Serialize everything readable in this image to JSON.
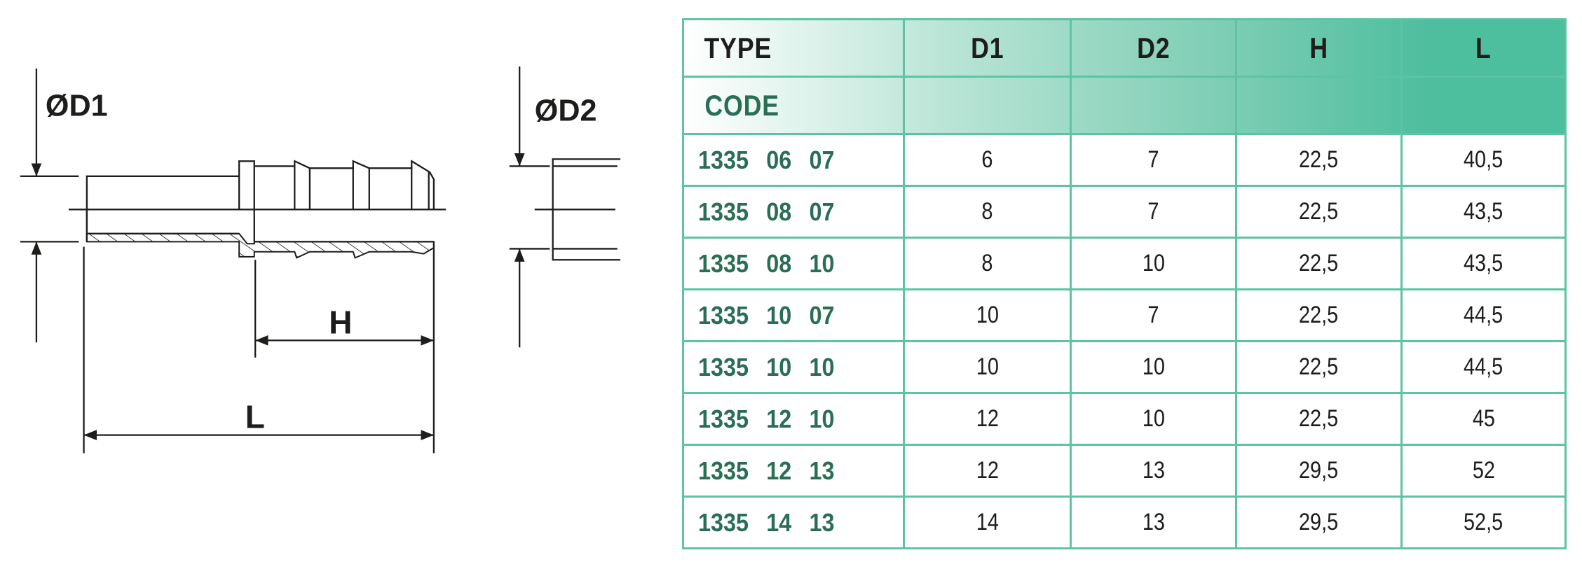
{
  "drawing": {
    "labels": {
      "d1": "ØD1",
      "d2": "ØD2",
      "h": "H",
      "l": "L"
    }
  },
  "table": {
    "header": {
      "type": "TYPE",
      "code": "CODE",
      "columns": [
        "D1",
        "D2",
        "H",
        "L"
      ]
    },
    "rows": [
      {
        "code": "1335 06 07",
        "d1": "6",
        "d2": "7",
        "h": "22,5",
        "l": "40,5"
      },
      {
        "code": "1335 08 07",
        "d1": "8",
        "d2": "7",
        "h": "22,5",
        "l": "43,5"
      },
      {
        "code": "1335 08 10",
        "d1": "8",
        "d2": "10",
        "h": "22,5",
        "l": "43,5"
      },
      {
        "code": "1335 10 07",
        "d1": "10",
        "d2": "7",
        "h": "22,5",
        "l": "44,5"
      },
      {
        "code": "1335 10 10",
        "d1": "10",
        "d2": "10",
        "h": "22,5",
        "l": "44,5"
      },
      {
        "code": "1335 12 10",
        "d1": "12",
        "d2": "10",
        "h": "22,5",
        "l": "45"
      },
      {
        "code": "1335 12 13",
        "d1": "12",
        "d2": "13",
        "h": "29,5",
        "l": "52"
      },
      {
        "code": "1335 14 13",
        "d1": "14",
        "d2": "13",
        "h": "29,5",
        "l": "52,5"
      }
    ]
  },
  "colors": {
    "border": "#5cc4a4",
    "header_gradient_end": "#4dbe9e",
    "code_text": "#2a6e55"
  }
}
